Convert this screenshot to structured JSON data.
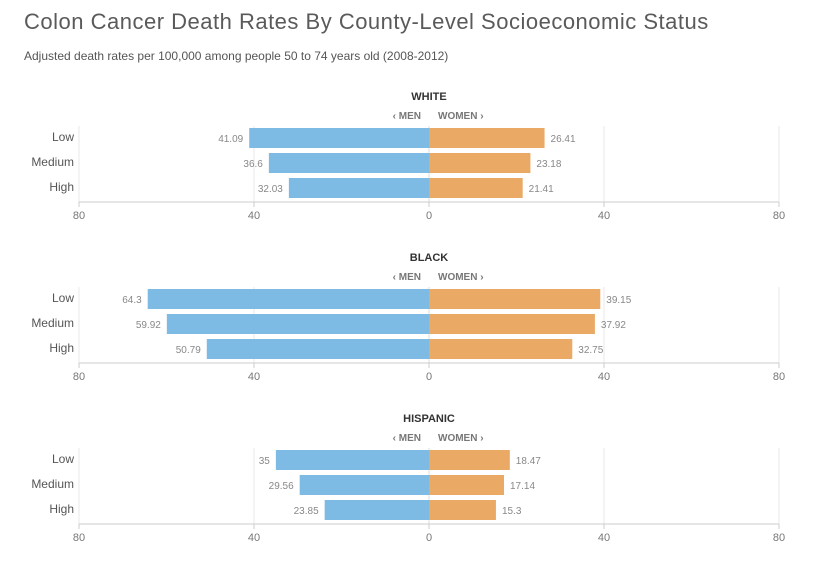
{
  "header": {
    "title": "Colon Cancer Death Rates By County-Level Socioeconomic Status",
    "subtitle": "Adjusted death rates per 100,000 among people 50 to 74 years old (2008-2012)"
  },
  "colors": {
    "men": "#7dbbe5",
    "women": "#eaa964",
    "grid": "#e8e8e8",
    "axis": "#cccccc"
  },
  "chart_data": [
    {
      "type": "bar",
      "title": "WHITE",
      "left_label": "‹ MEN",
      "right_label": "WOMEN ›",
      "categories": [
        "Low",
        "Medium",
        "High"
      ],
      "series": [
        {
          "name": "Men",
          "values": [
            41.09,
            36.6,
            32.03
          ]
        },
        {
          "name": "Women",
          "values": [
            26.41,
            23.18,
            21.41
          ]
        }
      ],
      "ticks": [
        80,
        40,
        0,
        40,
        80
      ],
      "xlim": [
        -80,
        80
      ]
    },
    {
      "type": "bar",
      "title": "BLACK",
      "left_label": "‹ MEN",
      "right_label": "WOMEN ›",
      "categories": [
        "Low",
        "Medium",
        "High"
      ],
      "series": [
        {
          "name": "Men",
          "values": [
            64.3,
            59.92,
            50.79
          ]
        },
        {
          "name": "Women",
          "values": [
            39.15,
            37.92,
            32.75
          ]
        }
      ],
      "ticks": [
        80,
        40,
        0,
        40,
        80
      ],
      "xlim": [
        -80,
        80
      ]
    },
    {
      "type": "bar",
      "title": "HISPANIC",
      "left_label": "‹ MEN",
      "right_label": "WOMEN ›",
      "categories": [
        "Low",
        "Medium",
        "High"
      ],
      "series": [
        {
          "name": "Men",
          "values": [
            35,
            29.56,
            23.85
          ]
        },
        {
          "name": "Women",
          "values": [
            18.47,
            17.14,
            15.3
          ]
        }
      ],
      "ticks": [
        80,
        40,
        0,
        40,
        80
      ],
      "xlim": [
        -80,
        80
      ]
    }
  ]
}
